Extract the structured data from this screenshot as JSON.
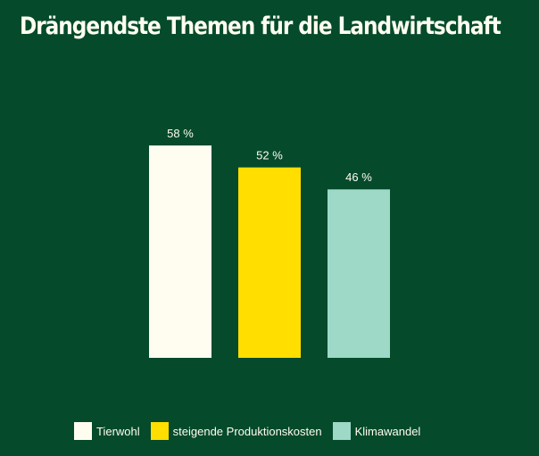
{
  "title": "Drängendste Themen für die Landwirtschaft",
  "chart_data": {
    "type": "bar",
    "categories": [
      "Tierwohl",
      "steigende Produktionskosten",
      "Klimawandel"
    ],
    "values": [
      58,
      52,
      46
    ],
    "data_labels": [
      "58 %",
      "52 %",
      "46 %"
    ],
    "colors": [
      "#fffdf0",
      "#ffde00",
      "#9dd9c6"
    ],
    "title": "Drängendste Themen für die Landwirtschaft",
    "xlabel": "",
    "ylabel": "",
    "unit": "%",
    "ylim": [
      0,
      58
    ],
    "grid": false,
    "legend": "bottom"
  },
  "legend": {
    "items": [
      {
        "label": "Tierwohl",
        "color": "#fffdf0"
      },
      {
        "label": "steigende Produktionskosten",
        "color": "#ffde00"
      },
      {
        "label": "Klimawandel",
        "color": "#9dd9c6"
      }
    ]
  }
}
